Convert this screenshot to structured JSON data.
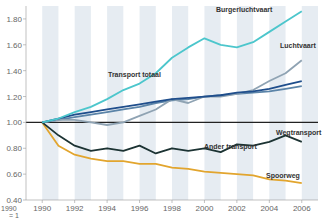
{
  "chart_data": {
    "type": "line",
    "x_label": "1990 = 1",
    "x": [
      1990,
      1991,
      1992,
      1993,
      1994,
      1995,
      1996,
      1997,
      1998,
      1999,
      2000,
      2001,
      2002,
      2003,
      2004,
      2005,
      2006
    ],
    "xlim": [
      1989,
      2007
    ],
    "xticks": [
      1990,
      1992,
      1994,
      1996,
      1998,
      2000,
      2002,
      2004,
      2006
    ],
    "ylim": [
      0.4,
      1.9
    ],
    "yticks": [
      {
        "value": 0.4,
        "label": "0.40"
      },
      {
        "value": 0.6,
        "label": "0.60"
      },
      {
        "value": 0.8,
        "label": "0.80"
      },
      {
        "value": 1.0,
        "label": "1.00"
      },
      {
        "value": 1.2,
        "label": "1.20"
      },
      {
        "value": 1.4,
        "label": "1.40"
      },
      {
        "value": 1.6,
        "label": "1.60"
      },
      {
        "value": 1.8,
        "label": "1.80"
      }
    ],
    "grid": true,
    "series": [
      {
        "name": "Burgerluchtvaart",
        "color": "#4cc6cc",
        "values": [
          1.0,
          1.03,
          1.08,
          1.12,
          1.18,
          1.25,
          1.3,
          1.38,
          1.5,
          1.58,
          1.65,
          1.6,
          1.58,
          1.62,
          1.7,
          1.78,
          1.86
        ]
      },
      {
        "name": "Luchtvaart",
        "color": "#8fa3b3",
        "values": [
          1.0,
          1.02,
          1.02,
          1.0,
          0.98,
          1.0,
          1.05,
          1.1,
          1.18,
          1.15,
          1.2,
          1.2,
          1.22,
          1.25,
          1.32,
          1.38,
          1.48
        ]
      },
      {
        "name": "Transport totaal",
        "color": "#1f4e8c",
        "values": [
          1.0,
          1.03,
          1.06,
          1.08,
          1.1,
          1.12,
          1.14,
          1.16,
          1.18,
          1.19,
          1.2,
          1.21,
          1.23,
          1.24,
          1.26,
          1.29,
          1.32
        ]
      },
      {
        "name": "Wegtransport",
        "color": "#5b84a8",
        "values": [
          1.0,
          1.02,
          1.04,
          1.06,
          1.08,
          1.1,
          1.12,
          1.15,
          1.17,
          1.18,
          1.2,
          1.21,
          1.22,
          1.23,
          1.24,
          1.26,
          1.28
        ]
      },
      {
        "name": "Ander transport",
        "color": "#1c3333",
        "values": [
          1.0,
          0.9,
          0.82,
          0.78,
          0.8,
          0.78,
          0.82,
          0.76,
          0.8,
          0.78,
          0.8,
          0.77,
          0.83,
          0.82,
          0.85,
          0.9,
          0.85
        ]
      },
      {
        "name": "Spoorweg",
        "color": "#e2a52e",
        "values": [
          1.0,
          0.82,
          0.75,
          0.72,
          0.7,
          0.7,
          0.68,
          0.68,
          0.65,
          0.64,
          0.62,
          0.61,
          0.6,
          0.59,
          0.56,
          0.55,
          0.53
        ]
      }
    ]
  }
}
